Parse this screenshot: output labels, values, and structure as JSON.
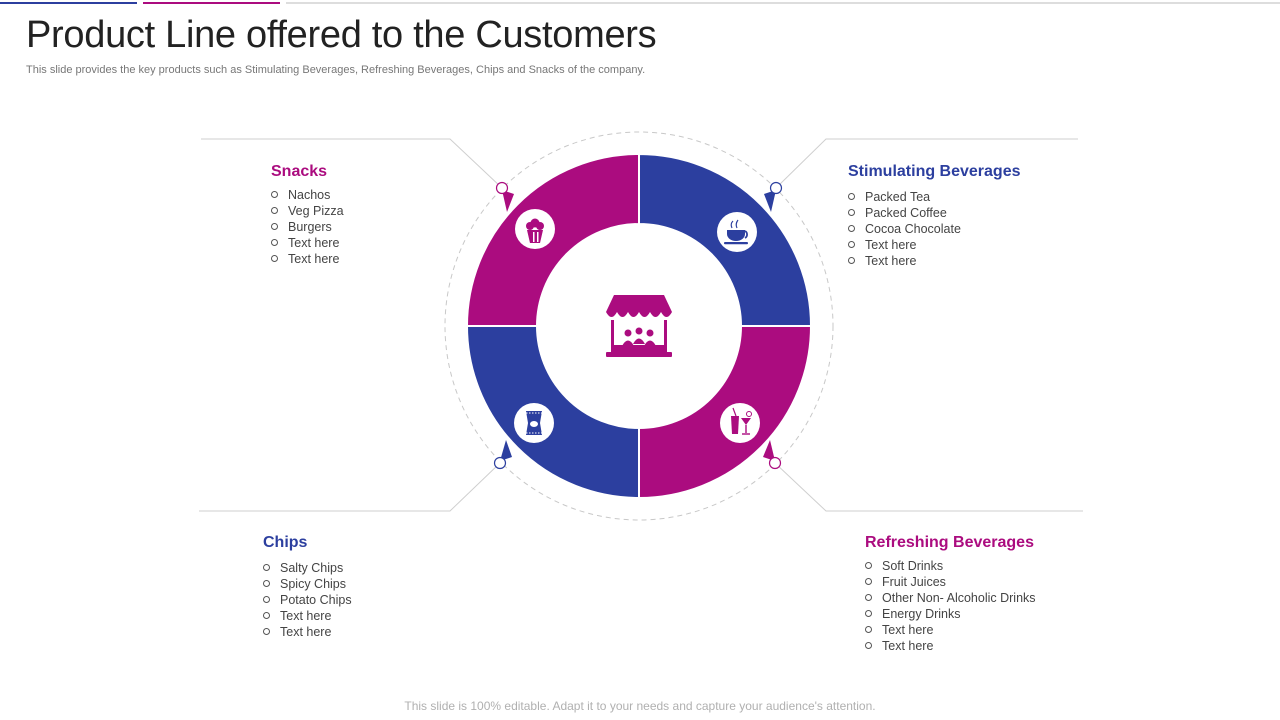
{
  "slide": {
    "title": "Product Line offered to the Customers",
    "subtitle": "This slide provides the key products such as Stimulating Beverages, Refreshing Beverages, Chips and Snacks of the company.",
    "footer": "This slide is 100% editable. Adapt it to your needs and capture your audience's attention."
  },
  "colors": {
    "magenta": "#ab0c7f",
    "blue": "#2c3f9f",
    "line": "#cfcfcf",
    "text": "#444444"
  },
  "center_icon": "market-stall-icon",
  "groups": {
    "snacks": {
      "title": "Snacks",
      "icon": "popcorn-icon",
      "items": [
        "Nachos",
        "Veg Pizza",
        "Burgers",
        "Text here",
        "Text here"
      ]
    },
    "stimulating": {
      "title": "Stimulating Beverages",
      "icon": "tea-cup-icon",
      "items": [
        "Packed Tea",
        "Packed Coffee",
        "Cocoa Chocolate",
        "Text here",
        "Text here"
      ]
    },
    "chips": {
      "title": "Chips",
      "icon": "chips-bag-icon",
      "items": [
        "Salty Chips",
        "Spicy Chips",
        "Potato Chips",
        "Text here",
        "Text here"
      ]
    },
    "refreshing": {
      "title": "Refreshing Beverages",
      "icon": "drinks-icon",
      "items": [
        "Soft Drinks",
        "Fruit Juices",
        "Other Non- Alcoholic Drinks",
        "Energy Drinks",
        "Text here",
        "Text here"
      ]
    }
  }
}
